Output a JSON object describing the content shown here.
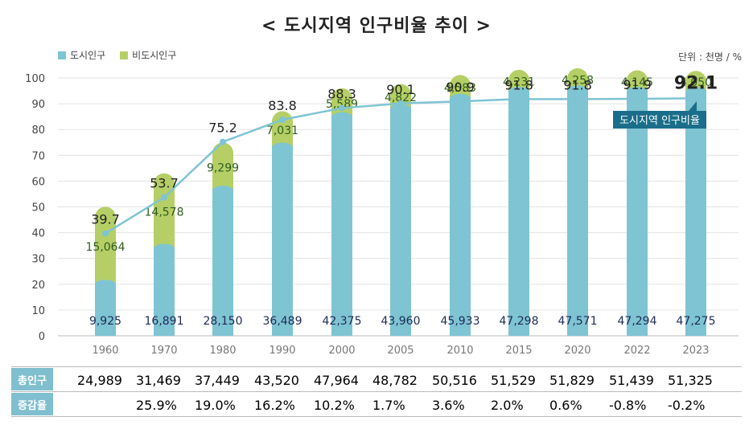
{
  "title": "< 도시지역 인구비율 추이 >",
  "unit": "단위 : 천명 / %",
  "legend": [
    {
      "label": "도시인구",
      "color": "#7ec4d3"
    },
    {
      "label": "비도시인구",
      "color": "#b5cf66"
    }
  ],
  "ratio_tag": "도시지역 인구비율",
  "colors": {
    "urban": "#7ec4d3",
    "rural": "#b5cf66",
    "line": "#7ec4d3",
    "tag": "#1a6e8a",
    "header": "#7fbfcf"
  },
  "chart_data": {
    "type": "bar",
    "categories": [
      "1960",
      "1970",
      "1980",
      "1990",
      "2000",
      "2005",
      "2010",
      "2015",
      "2020",
      "2022",
      "2023"
    ],
    "ylim": [
      0,
      100
    ],
    "yticks": [
      "0",
      "10",
      "20",
      "30",
      "40",
      "50",
      "60",
      "70",
      "80",
      "90",
      "100"
    ],
    "series": [
      {
        "name": "도시인구",
        "values": [
          9925,
          16891,
          28150,
          36489,
          42375,
          43960,
          45933,
          47298,
          47571,
          47294,
          47275
        ],
        "labels": [
          "9,925",
          "16,891",
          "28,150",
          "36,489",
          "42,375",
          "43,960",
          "45,933",
          "47,298",
          "47,571",
          "47,294",
          "47,275"
        ]
      },
      {
        "name": "비도시인구",
        "values": [
          15064,
          14578,
          9299,
          7031,
          5589,
          4822,
          4583,
          4231,
          4258,
          4145,
          4050
        ],
        "labels": [
          "15,064",
          "14,578",
          "9,299",
          "7,031",
          "5,589",
          "4,822",
          "4,583",
          "4,231",
          "4,258",
          "4,145",
          "4,050"
        ]
      },
      {
        "name": "도시지역 인구비율",
        "values": [
          39.7,
          53.7,
          75.2,
          83.8,
          88.3,
          90.1,
          90.9,
          91.8,
          91.8,
          91.9,
          92.1
        ],
        "labels": [
          "39.7",
          "53.7",
          "75.2",
          "83.8",
          "88.3",
          "90.1",
          "90.9",
          "91.8",
          "91.8",
          "91.9",
          "92.1"
        ]
      }
    ]
  },
  "table": {
    "rows": [
      {
        "header": "총인구",
        "values": [
          "24,989",
          "31,469",
          "37,449",
          "43,520",
          "47,964",
          "48,782",
          "50,516",
          "51,529",
          "51,829",
          "51,439",
          "51,325"
        ]
      },
      {
        "header": "증감율",
        "values": [
          "",
          "25.9%",
          "19.0%",
          "16.2%",
          "10.2%",
          "1.7%",
          "3.6%",
          "2.0%",
          "0.6%",
          "-0.8%",
          "-0.2%"
        ]
      }
    ]
  }
}
